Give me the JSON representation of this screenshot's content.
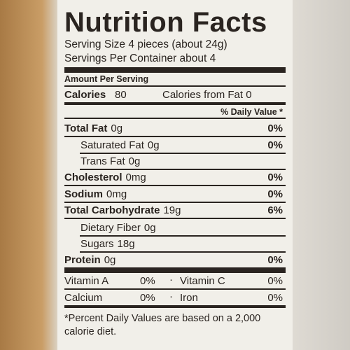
{
  "title": "Nutrition Facts",
  "serving_size": "Serving Size 4 pieces (about 24g)",
  "servings_per_container": "Servings Per Container about 4",
  "amount_per_serving": "Amount Per Serving",
  "calories": {
    "label": "Calories",
    "amount": "80",
    "from_fat": "Calories from Fat 0"
  },
  "daily_value_header": "% Daily Value *",
  "nutrients": [
    {
      "name": "Total Fat",
      "amount": "0g",
      "dv": "0%"
    },
    {
      "name": "Saturated Fat",
      "amount": "0g",
      "dv": "0%"
    },
    {
      "name": "Trans Fat",
      "amount": "0g"
    },
    {
      "name": "Cholesterol",
      "amount": "0mg",
      "dv": "0%"
    },
    {
      "name": "Sodium",
      "amount": "0mg",
      "dv": "0%"
    },
    {
      "name": "Total Carbohydrate",
      "amount": "19g",
      "dv": "6%"
    },
    {
      "name": "Dietary Fiber",
      "amount": "0g"
    },
    {
      "name": "Sugars",
      "amount": "18g"
    },
    {
      "name": "Protein",
      "amount": "0g",
      "dv": "0%"
    }
  ],
  "vitamins": [
    [
      {
        "name": "Vitamin A",
        "dv": "0%"
      },
      {
        "name": "Vitamin C",
        "dv": "0%"
      }
    ],
    [
      {
        "name": "Calcium",
        "dv": "0%"
      },
      {
        "name": "Iron",
        "dv": "0%"
      }
    ]
  ],
  "footnote": "*Percent Daily Values are based on a 2,000 calorie diet."
}
